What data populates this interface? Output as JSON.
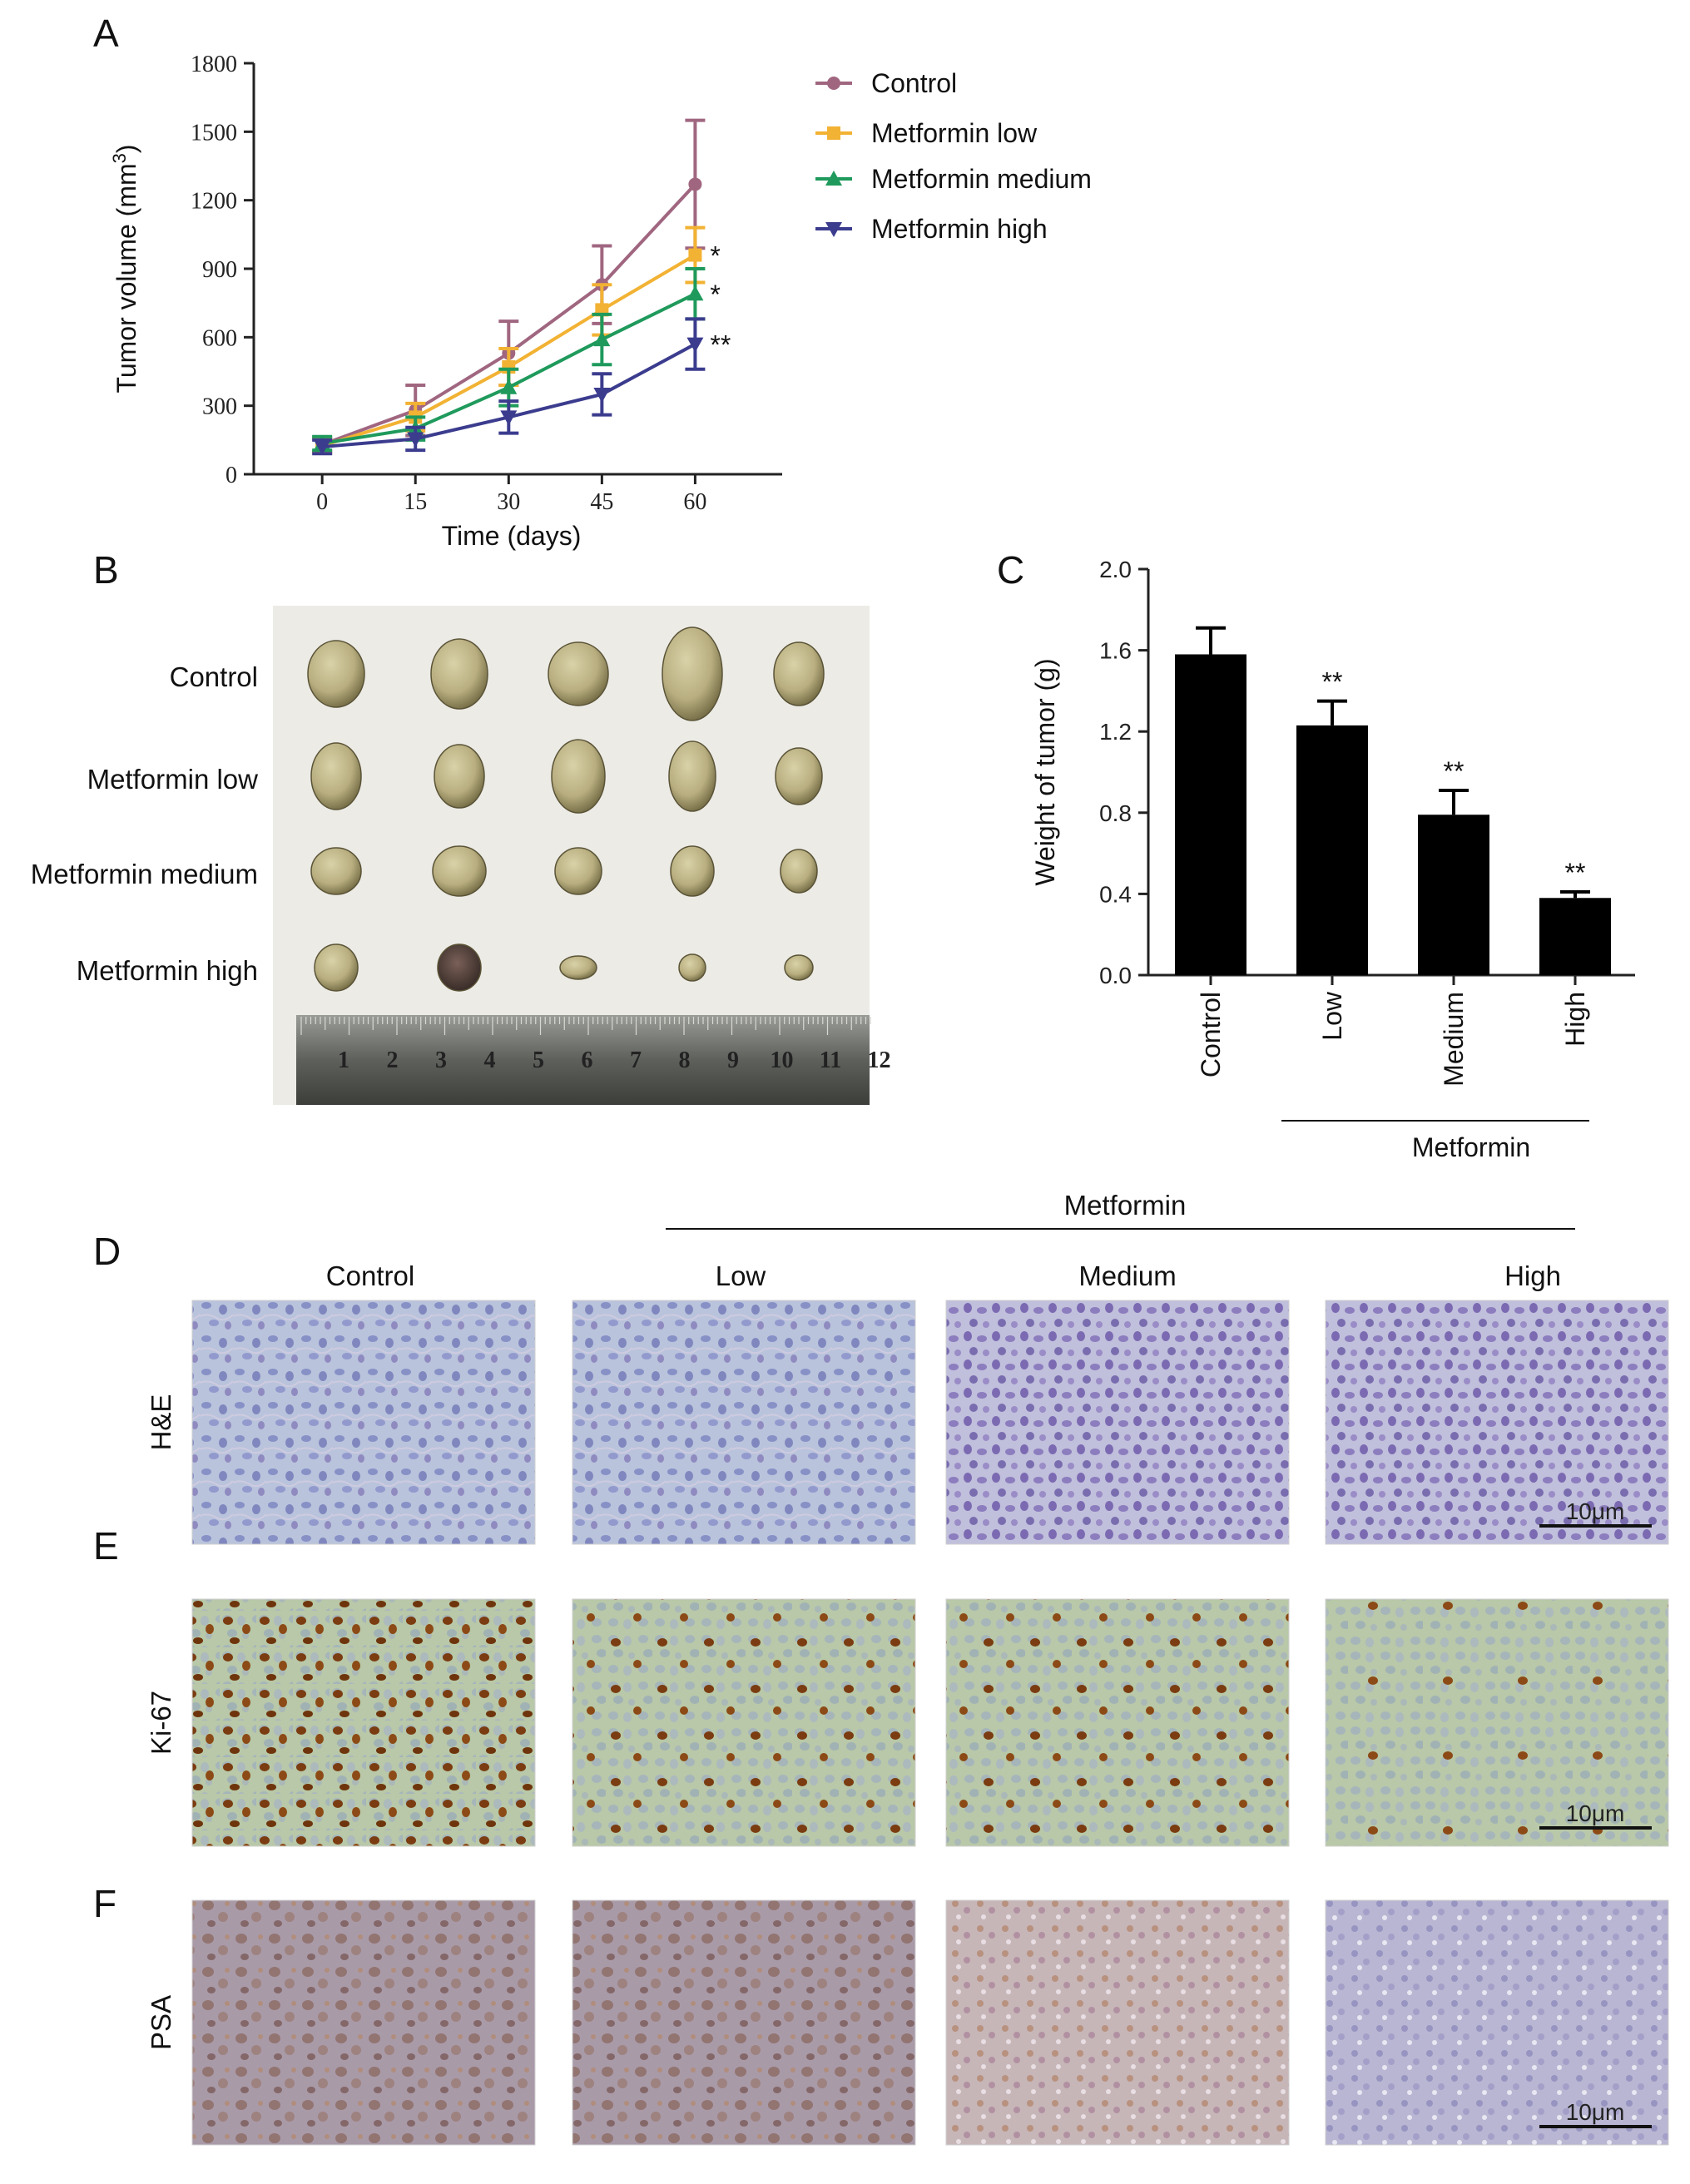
{
  "panels": {
    "A": "A",
    "B": "B",
    "C": "C",
    "D": "D",
    "E": "E",
    "F": "F"
  },
  "colors": {
    "control": "#a06680",
    "low": "#f2b233",
    "medium": "#1f9a5c",
    "high": "#3b3c8e",
    "bar": "#000000"
  },
  "chart_data": [
    {
      "panel": "A",
      "type": "line",
      "xlabel": "Time (days)",
      "ylabel": "Tumor volume (mm",
      "ylabel_sup": "3",
      "ylabel_close": ")",
      "x": [
        0,
        15,
        30,
        45,
        60
      ],
      "xticks": [
        "0",
        "15",
        "30",
        "45",
        "60"
      ],
      "yticks": [
        "0",
        "300",
        "600",
        "900",
        "1200",
        "1500",
        "1800"
      ],
      "ylim": [
        0,
        1800
      ],
      "legend_position": "right",
      "series": [
        {
          "name": "Control",
          "key": "control",
          "marker": "circle",
          "values": [
            130,
            280,
            530,
            830,
            1270
          ],
          "errors": [
            30,
            110,
            140,
            170,
            280
          ]
        },
        {
          "name": "Metformin low",
          "key": "low",
          "marker": "square",
          "values": [
            125,
            250,
            470,
            720,
            960
          ],
          "errors": [
            30,
            60,
            80,
            110,
            120
          ]
        },
        {
          "name": "Metformin medium",
          "key": "medium",
          "marker": "triangle-up",
          "values": [
            135,
            200,
            380,
            590,
            790
          ],
          "errors": [
            30,
            50,
            80,
            110,
            110
          ]
        },
        {
          "name": "Metformin high",
          "key": "high",
          "marker": "triangle-down",
          "values": [
            120,
            155,
            250,
            350,
            570
          ],
          "errors": [
            30,
            50,
            70,
            90,
            110
          ]
        }
      ],
      "significance": [
        {
          "series": "Metformin low",
          "label": "*"
        },
        {
          "series": "Metformin medium",
          "label": "*"
        },
        {
          "series": "Metformin high",
          "label": "**"
        }
      ]
    },
    {
      "panel": "C",
      "type": "bar",
      "ylabel": "Weight of tumor (g)",
      "categories": [
        "Control",
        "Low",
        "Medium",
        "High"
      ],
      "values": [
        1.58,
        1.23,
        0.79,
        0.38
      ],
      "errors": [
        0.13,
        0.12,
        0.12,
        0.03
      ],
      "significance": [
        "",
        "**",
        "**",
        "**"
      ],
      "yticks": [
        "0.0",
        "0.4",
        "0.8",
        "1.2",
        "1.6",
        "2.0"
      ],
      "ylim": [
        0,
        2.0
      ],
      "group_label": "Metformin"
    }
  ],
  "panel_b": {
    "rows": [
      "Control",
      "Metformin low",
      "Metformin medium",
      "Metformin high"
    ],
    "ruler_numbers": [
      "1",
      "2",
      "3",
      "4",
      "5",
      "6",
      "7",
      "8",
      "9",
      "10",
      "11",
      "12"
    ]
  },
  "histology": {
    "group_label": "Metformin",
    "columns": [
      "Control",
      "Low",
      "Medium",
      "High"
    ],
    "rows": [
      {
        "label": "H&E",
        "scale": "10μm"
      },
      {
        "label": "Ki-67",
        "scale": "10μm"
      },
      {
        "label": "PSA",
        "scale": "10μm"
      }
    ]
  }
}
